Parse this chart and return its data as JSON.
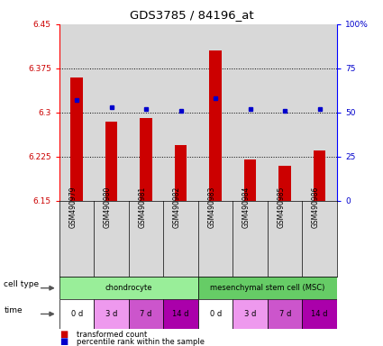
{
  "title": "GDS3785 / 84196_at",
  "samples": [
    "GSM490979",
    "GSM490980",
    "GSM490981",
    "GSM490982",
    "GSM490983",
    "GSM490984",
    "GSM490985",
    "GSM490986"
  ],
  "bar_values": [
    6.36,
    6.285,
    6.29,
    6.245,
    6.405,
    6.22,
    6.21,
    6.235
  ],
  "bar_base": 6.15,
  "percentile_values": [
    57,
    53,
    52,
    51,
    58,
    52,
    51,
    52
  ],
  "ylim_left": [
    6.15,
    6.45
  ],
  "ylim_right": [
    0,
    100
  ],
  "yticks_left": [
    6.15,
    6.225,
    6.3,
    6.375,
    6.45
  ],
  "ytick_labels_left": [
    "6.15",
    "6.225",
    "6.3",
    "6.375",
    "6.45"
  ],
  "yticks_right": [
    0,
    25,
    50,
    75,
    100
  ],
  "ytick_labels_right": [
    "0",
    "25",
    "50",
    "75",
    "100%"
  ],
  "hlines": [
    6.225,
    6.3,
    6.375
  ],
  "bar_color": "#cc0000",
  "dot_color": "#0000cc",
  "cell_types": [
    {
      "label": "chondrocyte",
      "start": 0,
      "end": 4,
      "color": "#99ee99"
    },
    {
      "label": "mesenchymal stem cell (MSC)",
      "start": 4,
      "end": 8,
      "color": "#66cc66"
    }
  ],
  "times": [
    "0 d",
    "3 d",
    "7 d",
    "14 d",
    "0 d",
    "3 d",
    "7 d",
    "14 d"
  ],
  "time_colors": [
    "#ffffff",
    "#ee99ee",
    "#cc55cc",
    "#aa00aa",
    "#ffffff",
    "#ee99ee",
    "#cc55cc",
    "#aa00aa"
  ],
  "legend_bar_label": "transformed count",
  "legend_dot_label": "percentile rank within the sample",
  "tick_label_color_left": "#cc0000",
  "tick_label_color_right": "#0000cc",
  "plot_bg_color": "#d8d8d8",
  "bar_width": 0.35
}
